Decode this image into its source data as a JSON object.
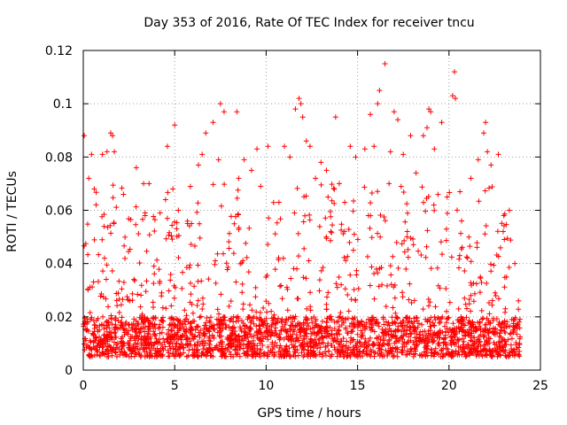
{
  "chart_data": {
    "type": "scatter",
    "title": "Day 353 of 2016, Rate Of TEC Index for receiver tncu",
    "xlabel": "GPS time / hours",
    "ylabel": "ROTI / TECUs",
    "xlim": [
      0,
      25
    ],
    "ylim": [
      0,
      0.12
    ],
    "x_ticks": [
      0,
      5,
      10,
      15,
      20,
      25
    ],
    "x_tick_labels": [
      "0",
      "5",
      "10",
      "15",
      "20",
      "25"
    ],
    "y_ticks": [
      0,
      0.02,
      0.04,
      0.06,
      0.08,
      0.1,
      0.12
    ],
    "y_tick_labels": [
      "0",
      "0.02",
      "0.04",
      "0.06",
      "0.08",
      "0.1",
      "0.12"
    ],
    "grid": true,
    "marker": "+",
    "color": "#ff0000",
    "x_range_of_data": [
      0,
      23.9
    ],
    "typical_baseline_range": [
      0.005,
      0.02
    ],
    "series": [
      {
        "name": "ROTI",
        "points": [
          [
            0.05,
            0.088
          ],
          [
            0.3,
            0.072
          ],
          [
            0.45,
            0.081
          ],
          [
            0.6,
            0.068
          ],
          [
            1.05,
            0.081
          ],
          [
            1.3,
            0.082
          ],
          [
            1.5,
            0.089
          ],
          [
            1.6,
            0.088
          ],
          [
            1.7,
            0.082
          ],
          [
            2.2,
            0.066
          ],
          [
            2.9,
            0.076
          ],
          [
            3.3,
            0.07
          ],
          [
            3.6,
            0.07
          ],
          [
            4.2,
            0.059
          ],
          [
            4.5,
            0.064
          ],
          [
            4.6,
            0.084
          ],
          [
            4.9,
            0.068
          ],
          [
            5.0,
            0.092
          ],
          [
            5.7,
            0.055
          ],
          [
            6.3,
            0.077
          ],
          [
            6.5,
            0.081
          ],
          [
            6.7,
            0.089
          ],
          [
            7.1,
            0.093
          ],
          [
            7.4,
            0.079
          ],
          [
            7.5,
            0.1
          ],
          [
            7.7,
            0.097
          ],
          [
            8.4,
            0.097
          ],
          [
            8.5,
            0.072
          ],
          [
            8.8,
            0.079
          ],
          [
            9.2,
            0.075
          ],
          [
            9.5,
            0.083
          ],
          [
            9.7,
            0.069
          ],
          [
            10.1,
            0.084
          ],
          [
            10.7,
            0.063
          ],
          [
            11.0,
            0.084
          ],
          [
            11.3,
            0.08
          ],
          [
            11.6,
            0.098
          ],
          [
            11.8,
            0.102
          ],
          [
            11.9,
            0.1
          ],
          [
            12.0,
            0.095
          ],
          [
            12.2,
            0.086
          ],
          [
            12.4,
            0.084
          ],
          [
            12.7,
            0.072
          ],
          [
            13.0,
            0.078
          ],
          [
            13.3,
            0.075
          ],
          [
            13.8,
            0.095
          ],
          [
            14.0,
            0.07
          ],
          [
            14.3,
            0.063
          ],
          [
            14.6,
            0.084
          ],
          [
            14.9,
            0.08
          ],
          [
            15.4,
            0.083
          ],
          [
            15.7,
            0.096
          ],
          [
            15.9,
            0.084
          ],
          [
            16.1,
            0.1
          ],
          [
            16.2,
            0.105
          ],
          [
            16.5,
            0.115
          ],
          [
            16.8,
            0.082
          ],
          [
            17.0,
            0.097
          ],
          [
            17.2,
            0.094
          ],
          [
            17.5,
            0.081
          ],
          [
            17.9,
            0.088
          ],
          [
            18.2,
            0.074
          ],
          [
            18.6,
            0.088
          ],
          [
            18.8,
            0.091
          ],
          [
            18.9,
            0.098
          ],
          [
            19.0,
            0.097
          ],
          [
            19.2,
            0.083
          ],
          [
            19.6,
            0.093
          ],
          [
            19.9,
            0.065
          ],
          [
            20.2,
            0.103
          ],
          [
            20.3,
            0.112
          ],
          [
            20.35,
            0.102
          ],
          [
            20.6,
            0.067
          ],
          [
            21.2,
            0.072
          ],
          [
            21.6,
            0.079
          ],
          [
            21.9,
            0.089
          ],
          [
            22.0,
            0.093
          ],
          [
            22.1,
            0.082
          ],
          [
            22.3,
            0.077
          ],
          [
            22.7,
            0.081
          ],
          [
            23.0,
            0.058
          ],
          [
            23.3,
            0.06
          ],
          [
            23.6,
            0.04
          ],
          [
            23.8,
            0.026
          ]
        ]
      }
    ]
  }
}
